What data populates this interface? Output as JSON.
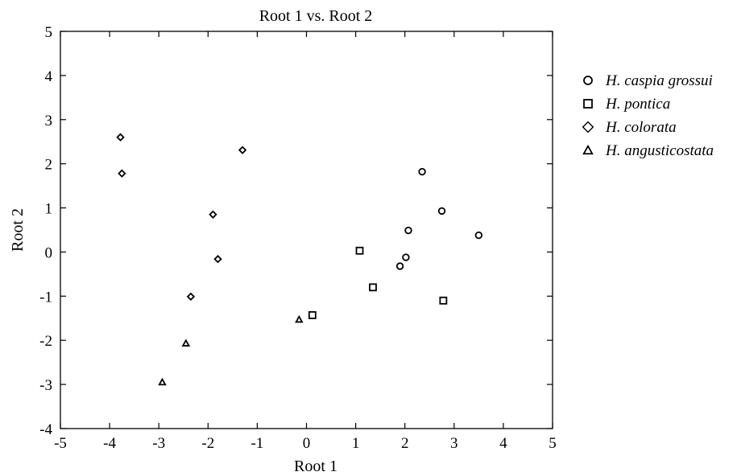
{
  "chart_data": {
    "type": "scatter",
    "title": "Root 1 vs. Root 2",
    "xlabel": "Root 1",
    "ylabel": "Root 2",
    "xlim": [
      -5,
      5
    ],
    "ylim": [
      -4,
      5
    ],
    "xticks": [
      "-5",
      "-4",
      "-3",
      "-2",
      "-1",
      "0",
      "1",
      "2",
      "3",
      "4",
      "5"
    ],
    "yticks": [
      "5",
      "4",
      "3",
      "2",
      "1",
      "0",
      "-1",
      "-2",
      "-3",
      "-4"
    ],
    "grid": false,
    "legend_position": "right",
    "series": [
      {
        "name": "H. caspia grossui",
        "marker": "circle",
        "points": [
          [
            2.35,
            1.82
          ],
          [
            2.75,
            0.93
          ],
          [
            3.5,
            0.38
          ],
          [
            2.07,
            0.49
          ],
          [
            2.02,
            -0.12
          ],
          [
            1.9,
            -0.32
          ]
        ]
      },
      {
        "name": "H. pontica",
        "marker": "square",
        "points": [
          [
            1.08,
            0.03
          ],
          [
            1.35,
            -0.8
          ],
          [
            2.78,
            -1.1
          ],
          [
            0.12,
            -1.43
          ]
        ]
      },
      {
        "name": "H. colorata",
        "marker": "diamond",
        "points": [
          [
            -3.78,
            2.6
          ],
          [
            -3.75,
            1.78
          ],
          [
            -1.3,
            2.31
          ],
          [
            -1.9,
            0.85
          ],
          [
            -1.8,
            -0.16
          ],
          [
            -2.35,
            -1.01
          ]
        ]
      },
      {
        "name": "H. angusticostata",
        "marker": "triangle",
        "points": [
          [
            -0.15,
            -1.53
          ],
          [
            -2.45,
            -2.07
          ],
          [
            -2.93,
            -2.95
          ]
        ]
      }
    ]
  }
}
